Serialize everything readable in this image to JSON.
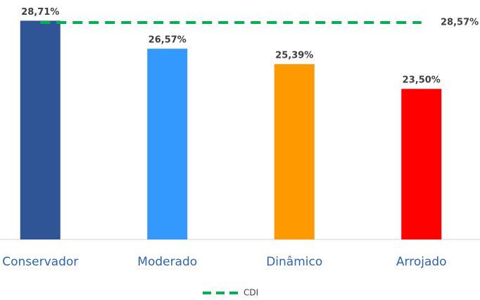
{
  "chart_data": {
    "type": "bar",
    "categories": [
      "Conservador",
      "Moderado",
      "Dinâmico",
      "Arrojado"
    ],
    "values": [
      28.71,
      26.57,
      25.39,
      23.5
    ],
    "value_labels": [
      "28,71%",
      "26,57%",
      "25,39%",
      "23,50%"
    ],
    "colors": [
      "#2f5597",
      "#3399ff",
      "#ff9900",
      "#ff0000"
    ],
    "ylim": [
      12,
      29
    ],
    "reference_line": {
      "name": "CDI",
      "value": 28.57,
      "value_label": "28,57%",
      "color": "#00b050",
      "dashed": true
    },
    "legend": "bottom"
  }
}
